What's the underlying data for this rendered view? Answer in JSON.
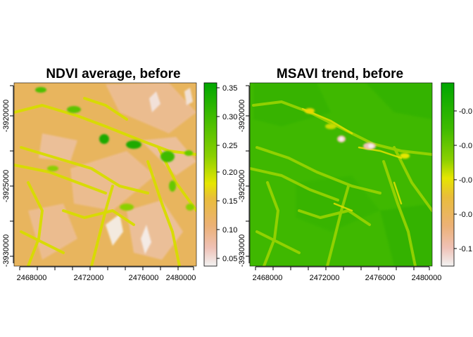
{
  "panels": [
    {
      "id": "ndvi",
      "title": "NDVI average, before",
      "x_ticks": [
        "2468000",
        "2472000",
        "2476000",
        "2480000"
      ],
      "y_ticks": [
        "-3920000",
        "-3925000",
        "-3930000"
      ],
      "legend_ticks": [
        "0.35",
        "0.30",
        "0.25",
        "0.20",
        "0.15",
        "0.10",
        "0.05"
      ],
      "legend_colors": [
        "#00A600",
        "#1CB300",
        "#3EBB00",
        "#66C800",
        "#8BD000",
        "#B3DB00",
        "#E6E600",
        "#E8C32E",
        "#E9BD3A",
        "#EBB25E",
        "#ECB176",
        "#EEB99F",
        "#EFC1B6",
        "#F0C9C0",
        "#F2F2F2"
      ],
      "base_color": "#E8B55E"
    },
    {
      "id": "msavi",
      "title": "MSAVI trend, before",
      "x_ticks": [
        "2468000",
        "2472000",
        "2476000",
        "2480000"
      ],
      "y_ticks": [
        "-3920000",
        "-3925000",
        "-3930000"
      ],
      "legend_ticks": [
        "-0.0",
        "-0.0",
        "-0.0",
        "-0.0",
        "-0.1"
      ],
      "legend_colors": [
        "#00A600",
        "#1CB300",
        "#3EBB00",
        "#66C800",
        "#8BD000",
        "#B3DB00",
        "#E6E600",
        "#E8C32E",
        "#E9BD3A",
        "#EBB25E",
        "#ECB176",
        "#EEB99F",
        "#EFC1B6",
        "#F0C9C0",
        "#F2F2F2"
      ],
      "base_color": "#3FB800"
    }
  ]
}
